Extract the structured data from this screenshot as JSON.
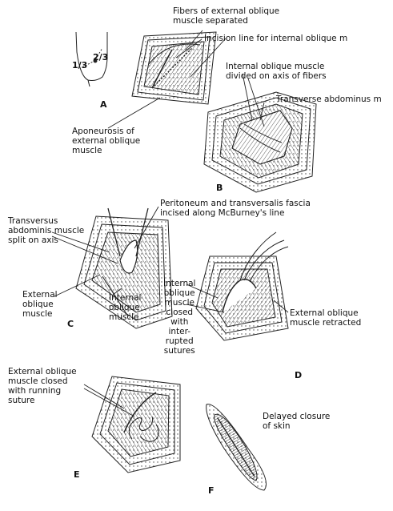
{
  "panels": {
    "a": "A",
    "b": "B",
    "c": "C",
    "d": "D",
    "e": "E",
    "f": "F"
  },
  "fractions": {
    "one_third": "1/3",
    "two_thirds": "2/3"
  },
  "labels": {
    "fibers_separated": "Fibers of external oblique\nmuscle separated",
    "incision_line": "Incision line for internal oblique m",
    "aponeurosis": "Aponeurosis of\nexternal oblique\nmuscle",
    "internal_divided": "Internal oblique muscle\ndivided on axis of fibers",
    "transverse_abdominus": "Transverse abdominus m",
    "peritoneum": "Peritoneum and transversalis fascia\nincised along McBurney's line",
    "transversus_split": "Transversus\nabdominis muscle\nsplit on axis",
    "external_oblique_c": "External\noblique\nmuscle",
    "internal_oblique_c": "Internal\noblique\nmuscle",
    "internal_closed": "Internal\noblique\nmuscle\nclosed\nwith\ninter-\nrupted\nsutures",
    "external_retracted": "External oblique\nmuscle retracted",
    "external_closed": "External oblique\nmuscle closed\nwith running\nsuture",
    "delayed_closure": "Delayed closure\nof skin"
  }
}
